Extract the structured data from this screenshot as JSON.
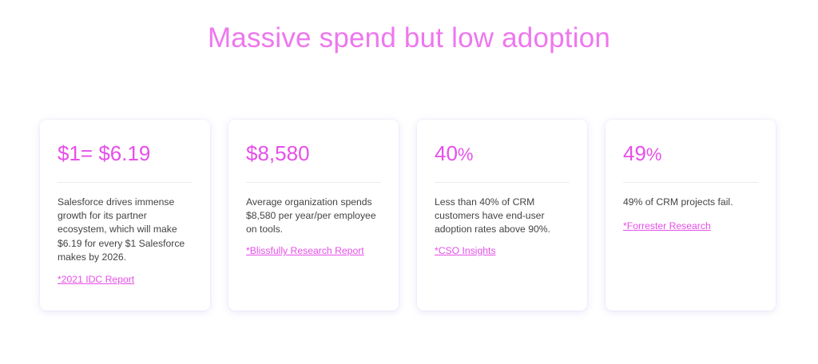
{
  "title": "Massive spend but low adoption",
  "accent_color": "#e64fe9",
  "cards": [
    {
      "stat": "$1= $6.19",
      "stat_suffix": "",
      "description_lines": [
        "Salesforce drives  immense",
        "growth for its partner",
        "ecosystem, which will make",
        "$6.19 for every $1 Salesforce",
        "makes by 2026."
      ],
      "source": "*2021 IDC Report"
    },
    {
      "stat": "$8,580",
      "stat_suffix": "",
      "description_lines": [
        "Average organization spends",
        "$8,580 per year/per employee",
        "on tools."
      ],
      "source": "*Blissfully Research Report"
    },
    {
      "stat": "40",
      "stat_suffix": "%",
      "description_lines": [
        "Less than 40% of CRM",
        "customers have end-user",
        "adoption rates above 90%."
      ],
      "source": "*CSO Insights"
    },
    {
      "stat": "49",
      "stat_suffix": "%",
      "description_lines": [
        "49% of CRM projects fail."
      ],
      "source": "*Forrester Research"
    }
  ]
}
